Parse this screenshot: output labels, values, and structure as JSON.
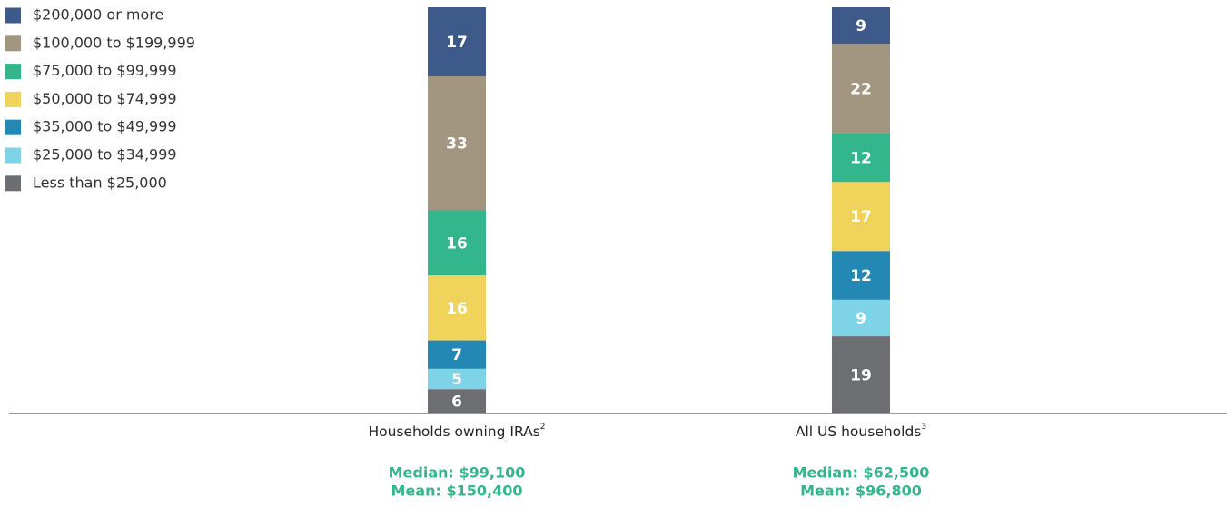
{
  "chart_data": {
    "type": "stacked-bar",
    "categories": [
      "Households owning IRAs",
      "All US households"
    ],
    "category_notes": [
      "2",
      "3"
    ],
    "annotations": [
      [
        "Median: $99,100",
        "Mean: $150,400"
      ],
      [
        "Median: $62,500",
        "Mean: $96,800"
      ]
    ],
    "series": [
      {
        "name": "$200,000 or more",
        "color": "#3d5a8a",
        "values": [
          17,
          9
        ]
      },
      {
        "name": "$100,000 to $199,999",
        "color": "#a39680",
        "values": [
          33,
          22
        ]
      },
      {
        "name": "$75,000 to $99,999",
        "color": "#33b68b",
        "values": [
          16,
          12
        ]
      },
      {
        "name": "$50,000 to $74,999",
        "color": "#f0d35a",
        "values": [
          16,
          17
        ]
      },
      {
        "name": "$35,000 to $49,999",
        "color": "#2389b4",
        "values": [
          7,
          12
        ]
      },
      {
        "name": "$25,000 to $34,999",
        "color": "#7fd3e6",
        "values": [
          5,
          9
        ]
      },
      {
        "name": "Less than $25,000",
        "color": "#6d6e71",
        "values": [
          6,
          19
        ]
      }
    ]
  }
}
